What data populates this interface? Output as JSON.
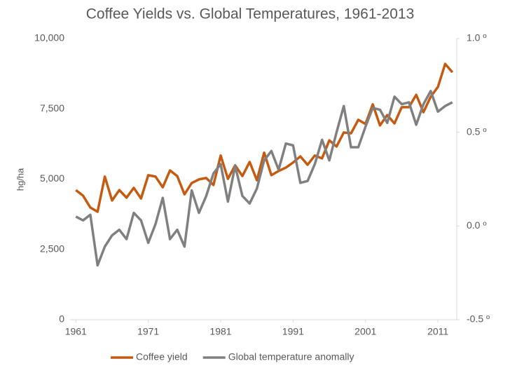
{
  "chart_data": {
    "type": "line",
    "title": "Coffee Yields vs. Global Temperatures, 1961-2013",
    "y_label": "hg/ha",
    "x": [
      1961,
      1962,
      1963,
      1964,
      1965,
      1966,
      1967,
      1968,
      1969,
      1970,
      1971,
      1972,
      1973,
      1974,
      1975,
      1976,
      1977,
      1978,
      1979,
      1980,
      1981,
      1982,
      1983,
      1984,
      1985,
      1986,
      1987,
      1988,
      1989,
      1990,
      1991,
      1992,
      1993,
      1994,
      1995,
      1996,
      1997,
      1998,
      1999,
      2000,
      2001,
      2002,
      2003,
      2004,
      2005,
      2006,
      2007,
      2008,
      2009,
      2010,
      2011,
      2012,
      2013
    ],
    "xlim": [
      1960.2,
      2013.6
    ],
    "xticks": [
      1961,
      1971,
      1981,
      1991,
      2001,
      2011
    ],
    "ylim": [
      0,
      10000
    ],
    "yticks": [
      0,
      {
        "value": 2500,
        "label": "2,500"
      },
      {
        "value": 5000,
        "label": "5,000"
      },
      {
        "value": 7500,
        "label": "7,500"
      },
      {
        "value": 10000,
        "label": "10,000"
      }
    ],
    "y2lim": [
      -0.5,
      1.0
    ],
    "y2ticks": [
      {
        "value": -0.5,
        "label": "-0.5 º"
      },
      {
        "value": 0.0,
        "label": "0.0 º"
      },
      {
        "value": 0.5,
        "label": "0.5 º"
      },
      {
        "value": 1.0,
        "label": "1.0 º"
      }
    ],
    "grid": false,
    "legend": "bottom",
    "series": [
      {
        "name": "Coffee yield",
        "color": "#c55a11",
        "values": [
          4610,
          4410,
          3990,
          3840,
          5090,
          4240,
          4610,
          4340,
          4690,
          4310,
          5140,
          5090,
          4710,
          5310,
          5110,
          4460,
          4860,
          4990,
          5040,
          4790,
          5840,
          5010,
          5490,
          5110,
          5610,
          4960,
          5940,
          5140,
          5290,
          5410,
          5590,
          5810,
          5510,
          5840,
          5740,
          6380,
          6160,
          6660,
          6630,
          7110,
          6960,
          7660,
          6910,
          7280,
          6980,
          7560,
          7560,
          8000,
          7380,
          7930,
          8280,
          9100,
          8800
        ]
      },
      {
        "name": "Global temperature anomally",
        "color": "#808080",
        "axis": "y2",
        "values": [
          0.05,
          0.03,
          0.06,
          -0.21,
          -0.11,
          -0.05,
          -0.02,
          -0.07,
          0.07,
          0.03,
          -0.09,
          0.01,
          0.15,
          -0.07,
          -0.02,
          -0.11,
          0.19,
          0.07,
          0.16,
          0.28,
          0.33,
          0.13,
          0.32,
          0.16,
          0.12,
          0.2,
          0.35,
          0.4,
          0.3,
          0.44,
          0.43,
          0.23,
          0.24,
          0.33,
          0.46,
          0.35,
          0.5,
          0.64,
          0.42,
          0.42,
          0.53,
          0.63,
          0.62,
          0.55,
          0.69,
          0.65,
          0.66,
          0.54,
          0.65,
          0.72,
          0.61,
          0.64,
          0.66
        ]
      }
    ]
  }
}
